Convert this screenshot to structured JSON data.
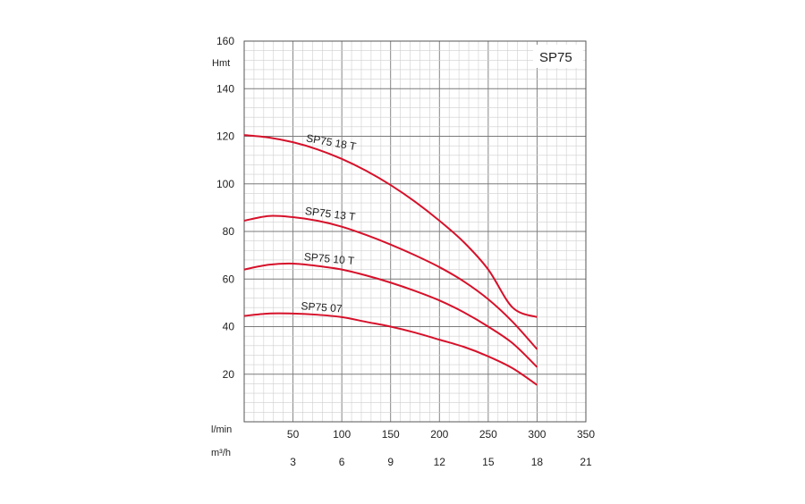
{
  "chart_data": {
    "type": "line",
    "title": "SP75",
    "ylabel": "Hmt",
    "x_primary_label": "l/min",
    "x_secondary_label": "m³/h",
    "xlim": [
      0,
      350
    ],
    "ylim": [
      0,
      160
    ],
    "x_ticks": [
      50,
      100,
      150,
      200,
      250,
      300,
      350
    ],
    "x_secondary_ticks": [
      3,
      6,
      9,
      12,
      15,
      18,
      21
    ],
    "y_ticks": [
      20,
      40,
      60,
      80,
      100,
      120,
      140,
      160
    ],
    "grid": true,
    "series": [
      {
        "name": "SP75 18 T",
        "color": "#d6112a",
        "x": [
          0,
          25,
          50,
          75,
          100,
          125,
          150,
          175,
          200,
          225,
          250,
          275,
          300
        ],
        "y": [
          120.5,
          119.5,
          117.5,
          114.5,
          110.5,
          105.5,
          99.5,
          92.5,
          84.5,
          75.5,
          64,
          48,
          44
        ]
      },
      {
        "name": "SP75 13 T",
        "color": "#d6112a",
        "x": [
          0,
          25,
          50,
          75,
          100,
          125,
          150,
          175,
          200,
          225,
          250,
          275,
          300
        ],
        "y": [
          84.5,
          86.5,
          86,
          84.5,
          82,
          78.5,
          74.5,
          70,
          65,
          59,
          51.5,
          42,
          30.5
        ]
      },
      {
        "name": "SP75 10 T",
        "color": "#d6112a",
        "x": [
          0,
          25,
          50,
          75,
          100,
          125,
          150,
          175,
          200,
          225,
          250,
          275,
          300
        ],
        "y": [
          64,
          66,
          66.5,
          65.5,
          64,
          61.5,
          58.5,
          55,
          51,
          46,
          40,
          33,
          23
        ]
      },
      {
        "name": "SP75 07",
        "color": "#d6112a",
        "x": [
          0,
          25,
          50,
          75,
          100,
          125,
          150,
          175,
          200,
          225,
          250,
          275,
          300
        ],
        "y": [
          44.5,
          45.5,
          45.5,
          45,
          44,
          42,
          40,
          37.5,
          34.5,
          31.5,
          27.5,
          22.5,
          15.5
        ]
      }
    ]
  }
}
